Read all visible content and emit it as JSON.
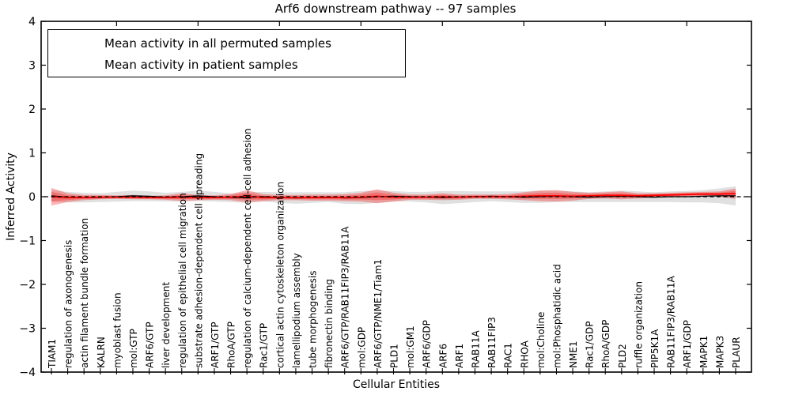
{
  "title": "Arf6 downstream pathway -- 97 samples",
  "legend": {
    "entries": [
      {
        "label": "Mean activity in all permuted samples",
        "color": "#000000"
      },
      {
        "label": "Mean activity in patient samples",
        "color": "#ff0000"
      }
    ]
  },
  "chart_data": {
    "type": "line",
    "title": "Arf6 downstream pathway -- 97 samples",
    "xlabel": "Cellular Entities",
    "ylabel": "Inferred Activity",
    "ylim": [
      -4,
      4
    ],
    "y_tick_labels": [
      "4",
      "3",
      "2",
      "1",
      "0",
      "−1",
      "−2",
      "−3",
      "−4"
    ],
    "y_tick_values": [
      4,
      3,
      2,
      1,
      0,
      -1,
      -2,
      -3,
      -4
    ],
    "grid": false,
    "legend_position": "upper left",
    "zero_reference_line": {
      "value": 0,
      "style": "dashed",
      "color": "#000000"
    },
    "categories": [
      "TIAM1",
      "regulation of axonogenesis",
      "actin filament bundle formation",
      "KALRN",
      "myoblast fusion",
      "mol:GTP",
      "ARF6/GTP",
      "liver development",
      "regulation of epithelial cell migration",
      "substrate adhesion-dependent cell spreading",
      "ARF1/GTP",
      "RhoA/GTP",
      "regulation of calcium-dependent cell-cell adhesion",
      "Rac1/GTP",
      "cortical actin cytoskeleton organization",
      "lamellipodium assembly",
      "tube morphogenesis",
      "fibronectin binding",
      "ARF6/GTP/RAB11FIP3/RAB11A",
      "mol:GDP",
      "ARF6/GTP/NME1/Tiam1",
      "PLD1",
      "mol:GM1",
      "ARF6/GDP",
      "ARF6",
      "ARF1",
      "RAB11A",
      "RAB11FIP3",
      "RAC1",
      "RHOA",
      "mol:Choline",
      "mol:Phosphatidic acid",
      "NME1",
      "Rac1/GDP",
      "RhoA/GDP",
      "PLD2",
      "ruffle organization",
      "PIP5K1A",
      "RAB11FIP3/RAB11A",
      "ARF1/GDP",
      "MAPK1",
      "MAPK3",
      "PLAUR"
    ],
    "series": [
      {
        "name": "Mean activity in all permuted samples",
        "color": "#000000",
        "style": "solid",
        "values": [
          0.02,
          -0.01,
          -0.02,
          -0.02,
          0.0,
          0.02,
          0.01,
          -0.01,
          0.0,
          0.02,
          0.0,
          -0.02,
          -0.02,
          0.0,
          -0.02,
          -0.03,
          -0.02,
          -0.01,
          -0.03,
          -0.02,
          0.0,
          0.01,
          0.0,
          -0.01,
          -0.02,
          -0.01,
          0.0,
          0.01,
          0.0,
          -0.01,
          0.0,
          0.01,
          0.0,
          -0.01,
          0.0,
          0.01,
          0.0,
          -0.01,
          0.0,
          0.0,
          0.01,
          0.02,
          0.02
        ],
        "band_half_widths": [
          0.13,
          0.12,
          0.11,
          0.1,
          0.11,
          0.12,
          0.11,
          0.1,
          0.11,
          0.12,
          0.11,
          0.1,
          0.12,
          0.11,
          0.12,
          0.13,
          0.12,
          0.11,
          0.13,
          0.15,
          0.14,
          0.12,
          0.11,
          0.12,
          0.15,
          0.14,
          0.12,
          0.11,
          0.12,
          0.13,
          0.14,
          0.13,
          0.12,
          0.11,
          0.12,
          0.13,
          0.12,
          0.11,
          0.12,
          0.13,
          0.14,
          0.17,
          0.22
        ],
        "band_color": "#000000",
        "band_opacity": 0.12
      },
      {
        "name": "Mean activity in patient samples",
        "color": "#ff0000",
        "style": "solid",
        "values": [
          0.0,
          -0.02,
          -0.02,
          -0.01,
          -0.01,
          -0.01,
          -0.02,
          -0.02,
          -0.01,
          -0.02,
          -0.02,
          -0.01,
          0.01,
          -0.02,
          -0.02,
          -0.02,
          -0.02,
          -0.02,
          -0.02,
          -0.01,
          0.01,
          -0.01,
          -0.01,
          -0.01,
          0.0,
          -0.01,
          0.0,
          0.0,
          0.0,
          0.01,
          0.02,
          0.02,
          0.01,
          0.02,
          0.03,
          0.03,
          0.02,
          0.03,
          0.04,
          0.05,
          0.06,
          0.06,
          0.07
        ],
        "band_half_widths": [
          0.2,
          0.1,
          0.06,
          0.05,
          0.04,
          0.05,
          0.04,
          0.05,
          0.09,
          0.06,
          0.05,
          0.07,
          0.14,
          0.08,
          0.06,
          0.06,
          0.07,
          0.07,
          0.08,
          0.1,
          0.16,
          0.1,
          0.06,
          0.06,
          0.08,
          0.06,
          0.05,
          0.05,
          0.06,
          0.09,
          0.12,
          0.13,
          0.1,
          0.07,
          0.07,
          0.09,
          0.06,
          0.05,
          0.05,
          0.05,
          0.05,
          0.06,
          0.12
        ],
        "band_color": "#ff0000",
        "band_opacity": 0.3
      }
    ]
  }
}
